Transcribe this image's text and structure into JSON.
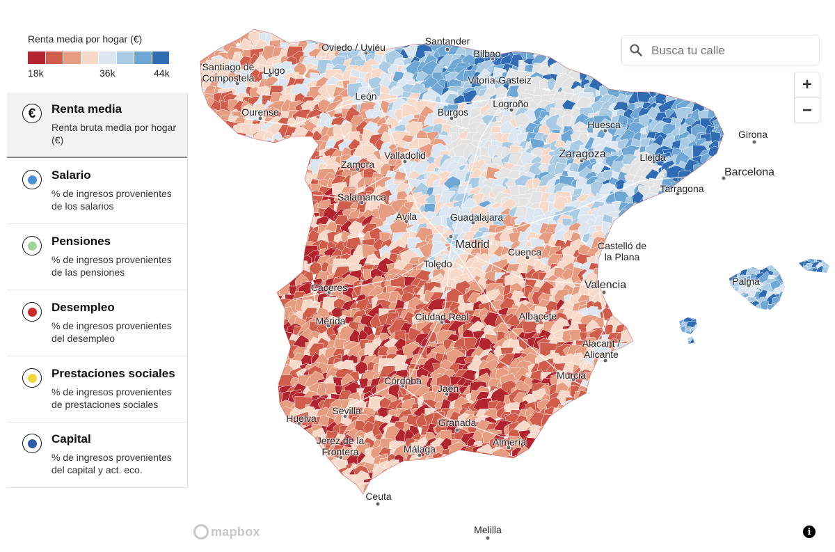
{
  "legend": {
    "title": "Renta media por hogar (€)",
    "colors": [
      "#b2242e",
      "#d05d4c",
      "#e69c80",
      "#f7d9c9",
      "#dbe6f1",
      "#a8cbe3",
      "#6ea6d4",
      "#2f6cb4"
    ],
    "tick_min": "18k",
    "tick_mid": "36k",
    "tick_max": "44k"
  },
  "variables": [
    {
      "title": "Renta media",
      "description": "Renta bruta media por hogar (€)",
      "icon": "euro-icon",
      "dot_color": "",
      "active": true
    },
    {
      "title": "Salario",
      "description": "% de ingresos provenientes de los salarios",
      "icon": "dot-icon",
      "dot_color": "#4a90d9",
      "active": false
    },
    {
      "title": "Pensiones",
      "description": "% de ingresos provenientes de las pensiones",
      "icon": "dot-icon",
      "dot_color": "#9fd59a",
      "active": false
    },
    {
      "title": "Desempleo",
      "description": "% de ingresos provenientes del desempleo",
      "icon": "dot-icon",
      "dot_color": "#cc2a2a",
      "active": false
    },
    {
      "title": "Prestaciones sociales",
      "description": "% de ingresos provenientes de prestaciones sociales",
      "icon": "dot-icon",
      "dot_color": "#f2d73a",
      "active": false
    },
    {
      "title": "Capital",
      "description": "% de ingresos provenientes del capital y act. eco.",
      "icon": "dot-icon",
      "dot_color": "#2a5ca8",
      "active": false
    }
  ],
  "search": {
    "placeholder": "Busca tu calle"
  },
  "zoom": {
    "in_label": "+",
    "out_label": "−"
  },
  "attribution": {
    "logo_text": "mapbox",
    "info_label": "i"
  },
  "cities": [
    {
      "name": "Santiago de\nCompostela",
      "big": false
    },
    {
      "name": "Lugo",
      "big": false
    },
    {
      "name": "Oviedo / Uviéu",
      "big": false
    },
    {
      "name": "Santander",
      "big": false
    },
    {
      "name": "Bilbao",
      "big": false
    },
    {
      "name": "Vitoria-Gasteiz",
      "big": false
    },
    {
      "name": "León",
      "big": false
    },
    {
      "name": "Ourense",
      "big": false
    },
    {
      "name": "Logroño",
      "big": false
    },
    {
      "name": "Burgos",
      "big": false
    },
    {
      "name": "Huesca",
      "big": false
    },
    {
      "name": "Girona",
      "big": false
    },
    {
      "name": "Barcelona",
      "big": true
    },
    {
      "name": "Lleida",
      "big": false
    },
    {
      "name": "Zaragoza",
      "big": true
    },
    {
      "name": "Tarragona",
      "big": false
    },
    {
      "name": "Valladolid",
      "big": false
    },
    {
      "name": "Zamora",
      "big": false
    },
    {
      "name": "Salamanca",
      "big": false
    },
    {
      "name": "Ávila",
      "big": false
    },
    {
      "name": "Guadalajara",
      "big": false
    },
    {
      "name": "Madrid",
      "big": true
    },
    {
      "name": "Cuenca",
      "big": false
    },
    {
      "name": "Castelló de\nla Plana",
      "big": false
    },
    {
      "name": "Toledo",
      "big": false
    },
    {
      "name": "Valencia",
      "big": true
    },
    {
      "name": "Palma",
      "big": false
    },
    {
      "name": "Cáceres",
      "big": false
    },
    {
      "name": "Mérida",
      "big": false
    },
    {
      "name": "Ciudad Real",
      "big": false
    },
    {
      "name": "Albacete",
      "big": false
    },
    {
      "name": "Alacant /\nAlicante",
      "big": false
    },
    {
      "name": "Murcia",
      "big": false
    },
    {
      "name": "Córdoba",
      "big": false
    },
    {
      "name": "Jaén",
      "big": false
    },
    {
      "name": "Huelva",
      "big": false
    },
    {
      "name": "Sevilla",
      "big": false
    },
    {
      "name": "Granada",
      "big": false
    },
    {
      "name": "Jerez de la\nFrontera",
      "big": false
    },
    {
      "name": "Málaga",
      "big": false
    },
    {
      "name": "Almería",
      "big": false
    },
    {
      "name": "Ceuta",
      "big": false
    },
    {
      "name": "Melilla",
      "big": false
    }
  ]
}
